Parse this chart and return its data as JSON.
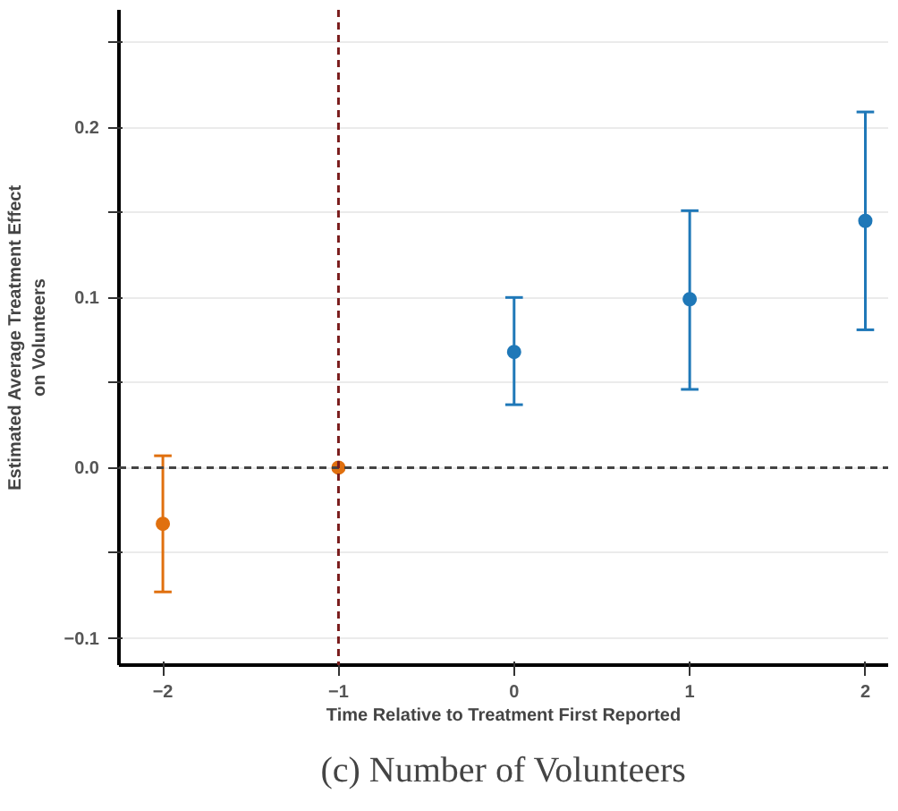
{
  "chart_data": {
    "type": "scatter",
    "xlabel": "Time Relative to Treatment First Reported",
    "ylabel": "Estimated Average Treatment Effect\non Volunteers",
    "series": [
      {
        "color": "#e0700f",
        "x": [
          -2,
          -1
        ],
        "values": [
          -0.033,
          0.0
        ],
        "errors": [
          [
            -0.073,
            0.007
          ],
          null
        ]
      },
      {
        "color": "#1f78b8",
        "x": [
          0,
          1,
          2
        ],
        "values": [
          0.068,
          0.099,
          0.145
        ],
        "errors": [
          [
            0.037,
            0.1
          ],
          [
            0.046,
            0.151
          ],
          [
            0.081,
            0.209
          ]
        ]
      }
    ],
    "xlim": [
      -2.25,
      2.13
    ],
    "ylim": [
      -0.116,
      0.269
    ],
    "xticks": [
      {
        "value": -2,
        "label": "−2"
      },
      {
        "value": -1,
        "label": "−1"
      },
      0,
      1,
      2
    ],
    "yticks": [
      {
        "value": -0.1,
        "label": "−0.1"
      },
      {
        "value": -0.05,
        "label": null
      },
      {
        "value": 0,
        "label": "0.0"
      },
      {
        "value": 0.05,
        "label": null
      },
      {
        "value": 0.1,
        "label": "0.1"
      },
      {
        "value": 0.15,
        "label": null
      },
      {
        "value": 0.2,
        "label": "0.2"
      },
      {
        "value": 0.25,
        "label": null
      }
    ],
    "grid": "y",
    "marker": "circle",
    "ref_lines": [
      {
        "axis": "y",
        "value": 0,
        "color": "#444444",
        "line_style": "dashed"
      },
      {
        "axis": "x",
        "value": -1,
        "color": "#7a1c1c",
        "line_style": "dashed"
      }
    ],
    "annotations": [
      "(c) Number of Volunteers"
    ]
  }
}
